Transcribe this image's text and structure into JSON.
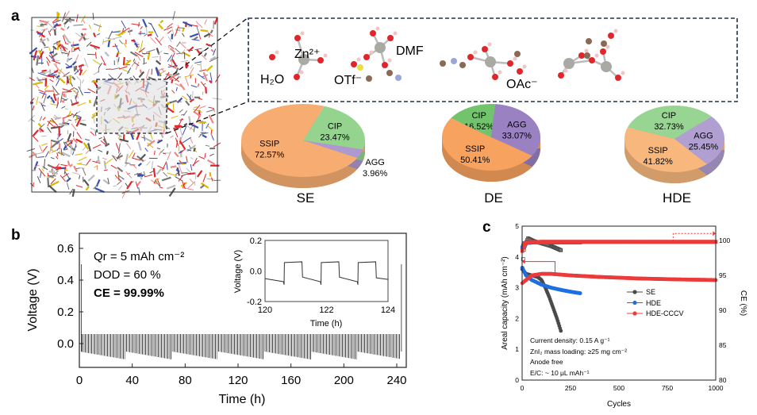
{
  "panel_labels": {
    "a": "a",
    "b": "b",
    "c": "c"
  },
  "panel_a": {
    "species_labels": {
      "h2o": "H₂O",
      "zn": "Zn²⁺",
      "otf": "OTf⁻",
      "dmf": "DMF",
      "oac": "OAc⁻"
    },
    "colors": {
      "zn": "#a9aaa4",
      "oxygen": "#e0262a",
      "hydrogen": "#f2c4c4",
      "carbon": "#8a6a55",
      "nitrogen": "#9aa6d6",
      "sulfur": "#e6e042",
      "box_border": "#1f3150"
    }
  },
  "chart_data": [
    {
      "type": "pie",
      "title": "SE",
      "categories": [
        "SSIP",
        "CIP",
        "AGG"
      ],
      "values": [
        72.57,
        23.47,
        3.96
      ],
      "labels": [
        "72.57%",
        "23.47%",
        "3.96%"
      ],
      "colors": [
        "#f7ad72",
        "#94d48f",
        "#ad98cf"
      ]
    },
    {
      "type": "pie",
      "title": "DE",
      "categories": [
        "SSIP",
        "CIP",
        "AGG"
      ],
      "values": [
        50.41,
        16.52,
        33.07
      ],
      "labels": [
        "50.41%",
        "16.52%",
        "33.07%"
      ],
      "colors": [
        "#f7a25e",
        "#72c46c",
        "#9a82c2"
      ]
    },
    {
      "type": "pie",
      "title": "HDE",
      "categories": [
        "SSIP",
        "CIP",
        "AGG"
      ],
      "values": [
        41.82,
        32.73,
        25.45
      ],
      "labels": [
        "41.82%",
        "32.73%",
        "25.45%"
      ],
      "colors": [
        "#f7b77d",
        "#98d593",
        "#b19fd2"
      ]
    },
    {
      "type": "line",
      "xlabel": "Time (h)",
      "ylabel": "Voltage (V)",
      "xlim": [
        0,
        245
      ],
      "ylim": [
        -0.15,
        0.7
      ],
      "xticks": [
        "0",
        "40",
        "80",
        "120",
        "160",
        "200",
        "240"
      ],
      "yticks": [
        "0.0",
        "0.2",
        "0.4",
        "0.6"
      ],
      "annotations": [
        "Qr = 5 mAh cm⁻²",
        "DOD = 60 %",
        "CE = 99.99%"
      ],
      "series": [
        {
          "plating_voltage": 0.06,
          "stripping_voltage": [
            -0.05,
            -0.1
          ],
          "cycle_period_h": 1.2,
          "color": "#333333"
        }
      ],
      "inset": {
        "xlabel": "Time (h)",
        "ylabel": "Voltage (V)",
        "xlim": [
          120,
          124
        ],
        "ylim": [
          -0.2,
          0.2
        ],
        "xticks": [
          "120",
          "122",
          "124"
        ],
        "yticks": [
          "-0.2",
          "0.0",
          "0.2"
        ],
        "points": [
          [
            120,
            -0.05
          ],
          [
            120.6,
            -0.07
          ],
          [
            120.62,
            -0.09
          ],
          [
            120.63,
            0.055
          ],
          [
            121.2,
            0.06
          ],
          [
            121.22,
            -0.04
          ],
          [
            121.8,
            -0.07
          ],
          [
            121.82,
            -0.09
          ],
          [
            121.83,
            0.055
          ],
          [
            122.4,
            0.06
          ],
          [
            122.42,
            -0.04
          ],
          [
            123.0,
            -0.07
          ],
          [
            123.02,
            -0.09
          ],
          [
            123.03,
            0.055
          ],
          [
            123.6,
            0.06
          ],
          [
            123.62,
            -0.045
          ],
          [
            124,
            -0.055
          ]
        ]
      }
    },
    {
      "type": "scatter",
      "xlabel": "Cycles",
      "ylabel": "Areal capacity (mAh cm⁻²)",
      "y2label": "CE (%)",
      "xlim": [
        0,
        1000
      ],
      "ylim": [
        0,
        5
      ],
      "y2lim": [
        80,
        102
      ],
      "xticks": [
        "0",
        "250",
        "500",
        "750",
        "1000"
      ],
      "yticks": [
        "0",
        "1",
        "2",
        "3",
        "4",
        "5"
      ],
      "y2ticks": [
        "80",
        "85",
        "90",
        "95",
        "100"
      ],
      "annotations": [
        "Current density: 0.15 A g⁻¹",
        "ZnI₂ mass loading: ≥25 mg cm⁻²",
        "Anode free",
        "E/C: ~ 10 μL mAh⁻¹"
      ],
      "legend_position": "center-right",
      "series": [
        {
          "name": "SE",
          "color": "#4a4a4a",
          "capacity": [
            [
              1,
              3.6
            ],
            [
              20,
              3.45
            ],
            [
              50,
              3.4
            ],
            [
              80,
              3.35
            ],
            [
              100,
              3.25
            ],
            [
              120,
              3.0
            ],
            [
              140,
              2.7
            ],
            [
              160,
              2.35
            ],
            [
              180,
              2.0
            ],
            [
              200,
              1.6
            ]
          ],
          "ce": [
            [
              1,
              96
            ],
            [
              10,
              99
            ],
            [
              30,
              100.3
            ],
            [
              60,
              99.9
            ],
            [
              100,
              99.6
            ],
            [
              150,
              99.2
            ],
            [
              200,
              98.6
            ]
          ]
        },
        {
          "name": "HDE",
          "color": "#1f6fe0",
          "capacity": [
            [
              1,
              3.65
            ],
            [
              20,
              3.4
            ],
            [
              50,
              3.25
            ],
            [
              100,
              3.1
            ],
            [
              150,
              3.0
            ],
            [
              200,
              2.93
            ],
            [
              250,
              2.87
            ],
            [
              300,
              2.82
            ]
          ],
          "ce": [
            [
              1,
              99
            ],
            [
              10,
              99.6
            ],
            [
              50,
              99.7
            ],
            [
              150,
              99.7
            ],
            [
              300,
              99.7
            ]
          ]
        },
        {
          "name": "HDE-CCCV",
          "color": "#ec3b3b",
          "capacity": [
            [
              1,
              3.15
            ],
            [
              20,
              3.25
            ],
            [
              50,
              3.4
            ],
            [
              100,
              3.45
            ],
            [
              150,
              3.45
            ],
            [
              250,
              3.4
            ],
            [
              400,
              3.35
            ],
            [
              600,
              3.3
            ],
            [
              800,
              3.27
            ],
            [
              1000,
              3.25
            ]
          ],
          "ce": [
            [
              1,
              98.5
            ],
            [
              10,
              99.5
            ],
            [
              30,
              99.75
            ],
            [
              100,
              99.8
            ],
            [
              500,
              99.8
            ],
            [
              1000,
              99.8
            ]
          ]
        }
      ]
    }
  ]
}
